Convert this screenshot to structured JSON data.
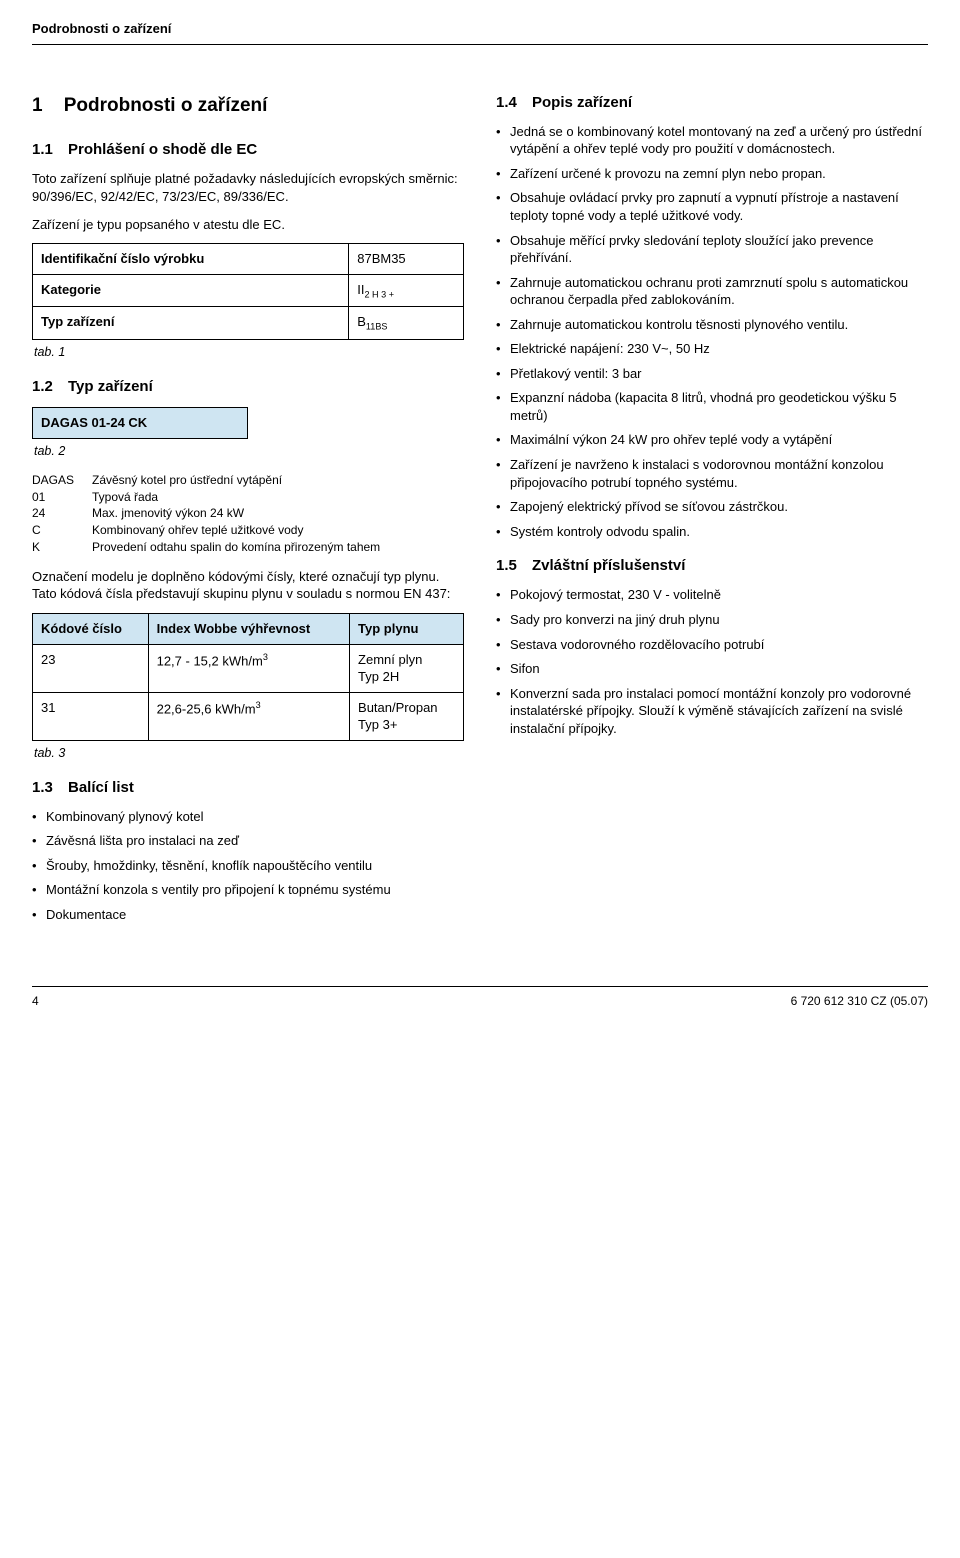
{
  "running_head": "Podrobnosti o zařízení",
  "h1": {
    "num": "1",
    "title": "Podrobnosti o zařízení"
  },
  "s11": {
    "num": "1.1",
    "title": "Prohlášení o shodě dle EC",
    "p1": "Toto zařízení splňuje platné požadavky následujících evropských směrnic: 90/396/EC, 92/42/EC, 73/23/EC, 89/336/EC.",
    "p2": "Zařízení je typu popsaného v atestu dle EC.",
    "table": {
      "r1k": "Identifikační číslo výrobku",
      "r1v": "87BM35",
      "r2k": "Kategorie",
      "r2v_pre": "II",
      "r2v_sub": "2 H 3 +",
      "r3k": "Typ zařízení",
      "r3v_pre": "B",
      "r3v_sub": "11BS"
    },
    "tabcap": "tab. 1"
  },
  "s12": {
    "num": "1.2",
    "title": "Typ zařízení",
    "model": "DAGAS 01-24 CK",
    "tabcap": "tab. 2",
    "defs": [
      {
        "k": "DAGAS",
        "v": "Závěsný kotel pro ústřední vytápění"
      },
      {
        "k": "01",
        "v": "Typová řada"
      },
      {
        "k": "24",
        "v": "Max. jmenovitý výkon 24 kW"
      },
      {
        "k": "C",
        "v": "Kombinovaný ohřev teplé užitkové vody"
      },
      {
        "k": "K",
        "v": "Provedení odtahu spalin do komína přirozeným tahem"
      }
    ],
    "p": "Označení modelu je doplněno kódovými čísly, které označují typ plynu. Tato kódová čísla představují skupinu plynu v souladu s normou EN 437:",
    "table2": {
      "h1": "Kódové číslo",
      "h2": "Index Wobbe výhřevnost",
      "h3": "Typ plynu",
      "r1c1": "23",
      "r1c2_pre": "12,7 - 15,2 kWh/m",
      "r1c2_sup": "3",
      "r1c3a": "Zemní plyn",
      "r1c3b": "Typ 2H",
      "r2c1": "31",
      "r2c2_pre": "22,6-25,6 kWh/m",
      "r2c2_sup": "3",
      "r2c3a": "Butan/Propan",
      "r2c3b": "Typ 3+"
    },
    "tabcap2": "tab. 3"
  },
  "s13": {
    "num": "1.3",
    "title": "Balící list",
    "items": [
      "Kombinovaný plynový kotel",
      "Závěsná lišta pro instalaci na zeď",
      "Šrouby, hmoždinky, těsnění, knoflík napouštěcího ventilu",
      "Montážní konzola s ventily pro připojení k topnému systému",
      "Dokumentace"
    ]
  },
  "s14": {
    "num": "1.4",
    "title": "Popis zařízení",
    "items": [
      "Jedná se o kombinovaný kotel montovaný na zeď a určený pro ústřední vytápění a ohřev teplé vody pro použití v domácnostech.",
      "Zařízení určené k provozu na zemní plyn nebo propan.",
      "Obsahuje ovládací prvky pro zapnutí a vypnutí přístroje a nastavení teploty topné vody a teplé užitkové vody.",
      "Obsahuje měřící prvky sledování teploty sloužící jako prevence přehřívání.",
      "Zahrnuje automatickou ochranu proti zamrznutí spolu s automatickou ochranou čerpadla před zablokováním.",
      "Zahrnuje automatickou kontrolu těsnosti plynového ventilu.",
      "Elektrické napájení: 230 V~, 50 Hz",
      "Přetlakový ventil: 3 bar",
      "Expanzní nádoba (kapacita 8 litrů, vhodná pro geodetickou výšku 5 metrů)",
      "Maximální výkon 24 kW pro ohřev teplé vody a vytápění",
      "Zařízení je navrženo k instalaci s vodorovnou montážní konzolou připojovacího potrubí topného systému.",
      "Zapojený elektrický přívod se síťovou zástrčkou.",
      "Systém kontroly odvodu spalin."
    ]
  },
  "s15": {
    "num": "1.5",
    "title": "Zvláštní příslušenství",
    "items": [
      "Pokojový termostat, 230 V - volitelně",
      "Sady pro konverzi na jiný druh plynu",
      "Sestava vodorovného rozdělovacího potrubí",
      "Sifon",
      "Konverzní sada pro instalaci pomocí montážní konzoly pro vodorovné instalatérské přípojky. Slouží k výměně stávajících zařízení na svislé instalační přípojky."
    ]
  },
  "footer": {
    "page": "4",
    "doc": "6 720 612 310 CZ (05.07)"
  }
}
